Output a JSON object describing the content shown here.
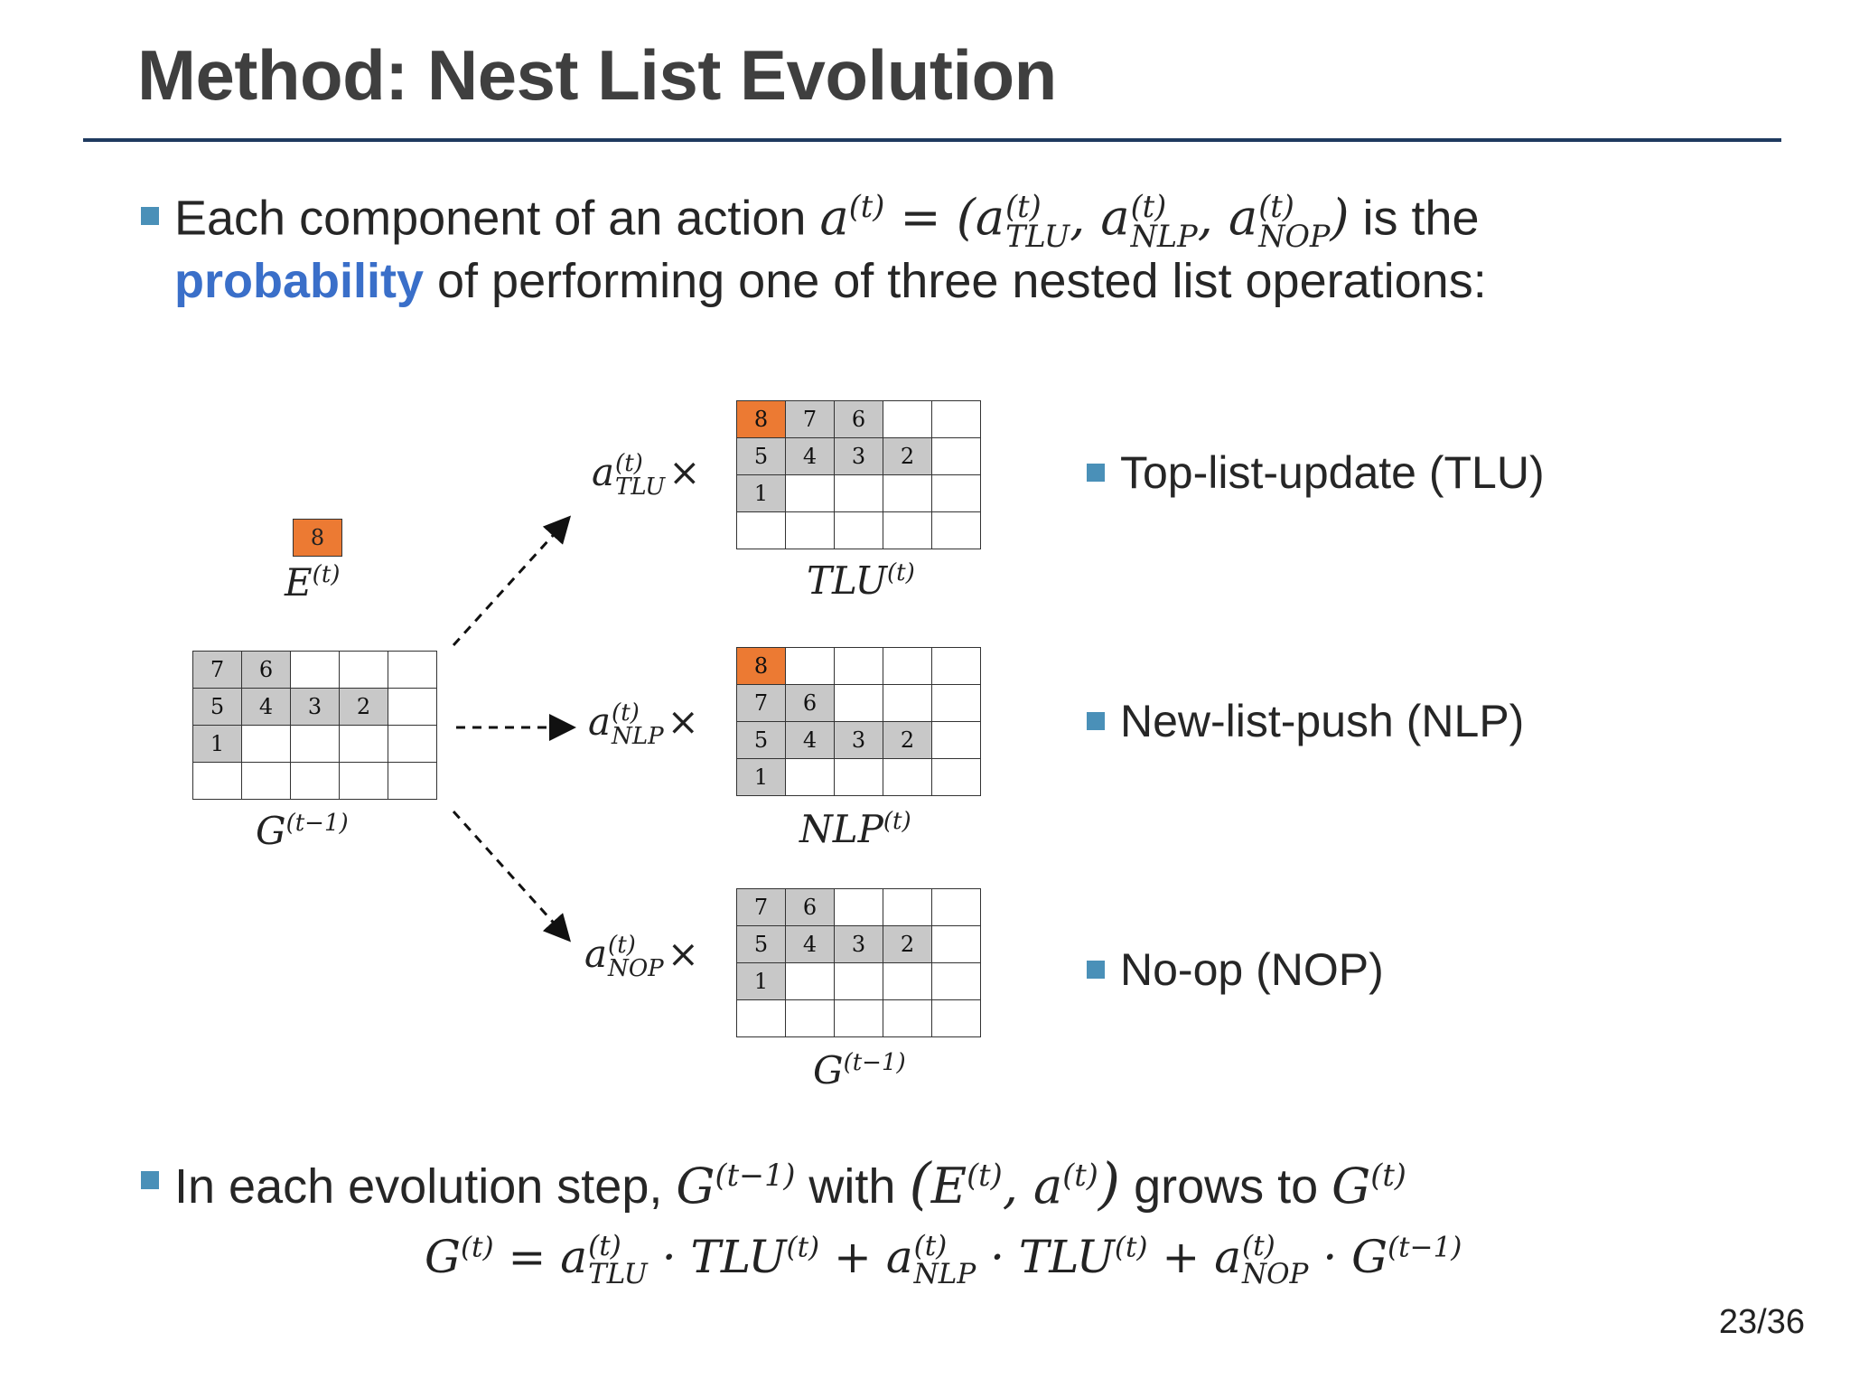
{
  "title": "Method: Nest List Evolution",
  "bullet1": {
    "line1_prefix": "Each component of an action ",
    "line1_suffix": " is the",
    "highlight": "probability",
    "line2_rest": " of performing one of three nested list operations:"
  },
  "bullet2": {
    "prefix": "In each evolution step, ",
    "with": " with ",
    "grows_to": " grows to "
  },
  "math": {
    "a": "a",
    "t": "(t)",
    "tm1": "(t−1)",
    "E": "E",
    "G": "G",
    "TLU": "TLU",
    "NLP": "NLP",
    "NOP": "NOP",
    "eq": " = ",
    "times": "×",
    "dot": " · ",
    "plus": " + ",
    "comma": ", "
  },
  "grids": {
    "g_prev": [
      [
        "7",
        "6",
        "",
        "",
        ""
      ],
      [
        "5",
        "4",
        "3",
        "2",
        ""
      ],
      [
        "1",
        "",
        "",
        "",
        ""
      ],
      [
        "",
        "",
        "",
        "",
        ""
      ]
    ],
    "tlu": [
      [
        "8",
        "7",
        "6",
        "",
        ""
      ],
      [
        "5",
        "4",
        "3",
        "2",
        ""
      ],
      [
        "1",
        "",
        "",
        "",
        ""
      ],
      [
        "",
        "",
        "",
        "",
        ""
      ]
    ],
    "nlp": [
      [
        "8",
        "",
        "",
        "",
        ""
      ],
      [
        "7",
        "6",
        "",
        "",
        ""
      ],
      [
        "5",
        "4",
        "3",
        "2",
        ""
      ],
      [
        "1",
        "",
        "",
        "",
        ""
      ]
    ],
    "nop": [
      [
        "7",
        "6",
        "",
        "",
        ""
      ],
      [
        "5",
        "4",
        "3",
        "2",
        ""
      ],
      [
        "1",
        "",
        "",
        "",
        ""
      ],
      [
        "",
        "",
        "",
        "",
        ""
      ]
    ]
  },
  "new_element": "8",
  "operations": {
    "tlu": "Top-list-update (TLU)",
    "nlp": "New-list-push (NLP)",
    "nop": "No-op (NOP)"
  },
  "page_number": "23/36",
  "colors": {
    "accent_orange": "#ec7a33",
    "filled_gray": "#c8c8c8",
    "highlight_blue": "#3a6fc9",
    "rule": "#1f3a5f",
    "bullet": "#4a90b8"
  }
}
